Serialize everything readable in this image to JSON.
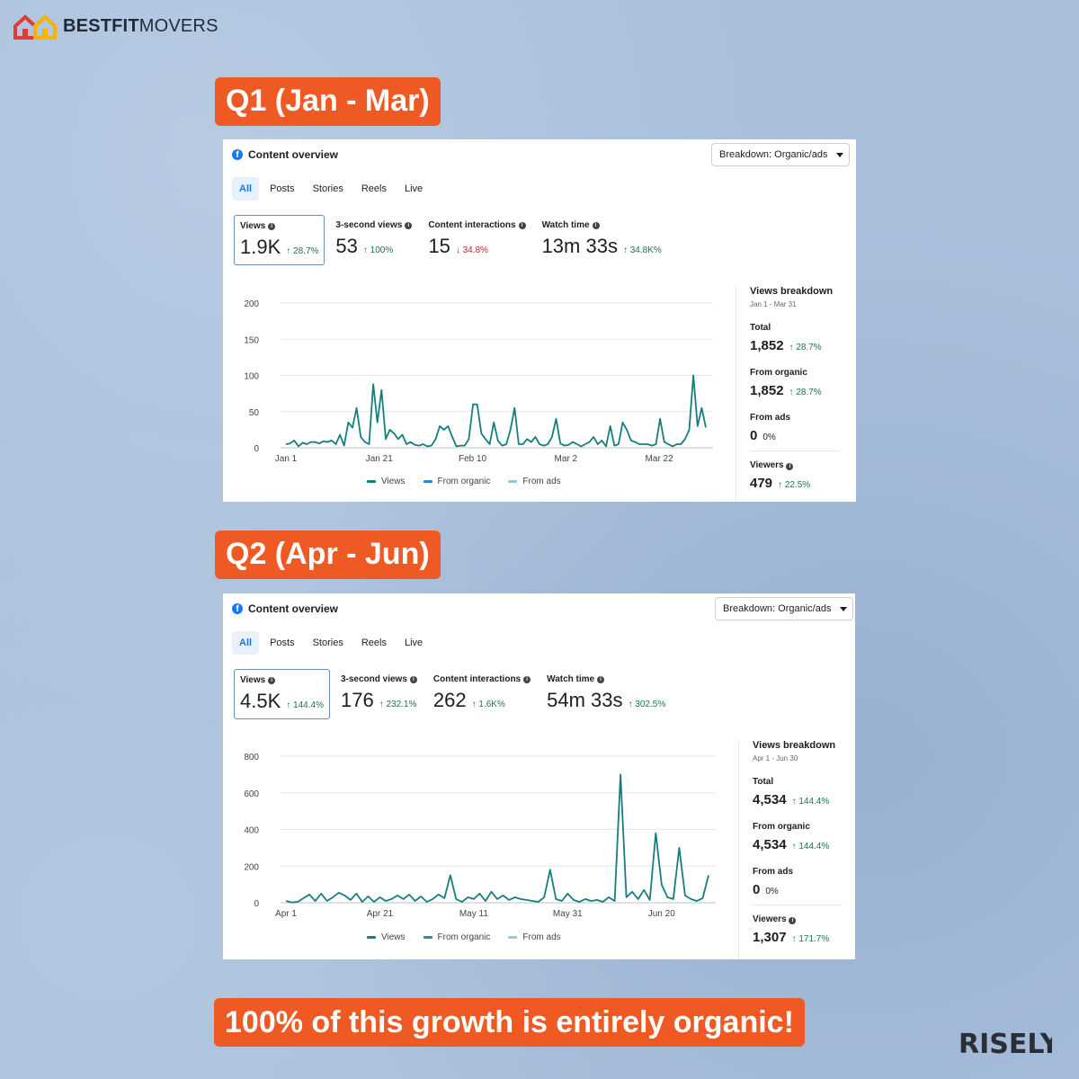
{
  "brand": {
    "name_bold": "BESTFIT",
    "name_light": "MOVERS",
    "colors": {
      "roof_red": "#e03b35",
      "roof_yellow": "#f4b400"
    }
  },
  "tagline": "100% of this growth is entirely organic!",
  "watermark": "RISELY",
  "accent": "#ef5a24",
  "panels": [
    {
      "quarter_label": "Q1 (Jan - Mar)",
      "title": "Content overview",
      "breakdown": "Breakdown: Organic/ads",
      "tabs": [
        "All",
        "Posts",
        "Stories",
        "Reels",
        "Live"
      ],
      "metrics": [
        {
          "label": "Views",
          "value": "1.9K",
          "delta": "28.7%",
          "dir": "up"
        },
        {
          "label": "3-second views",
          "value": "53",
          "delta": "100%",
          "dir": "up"
        },
        {
          "label": "Content interactions",
          "value": "15",
          "delta": "34.8%",
          "dir": "down"
        },
        {
          "label": "Watch time",
          "value": "13m 33s",
          "delta": "34.8K%",
          "dir": "up"
        }
      ],
      "side": {
        "title": "Views breakdown",
        "range": "Jan 1 - Mar 31",
        "total_label": "Total",
        "total": "1,852",
        "total_delta": "28.7%",
        "organic_label": "From organic",
        "organic": "1,852",
        "organic_delta": "28.7%",
        "ads_label": "From ads",
        "ads": "0",
        "ads_delta": "0%",
        "viewers_label": "Viewers",
        "viewers": "479",
        "viewers_delta": "22.5%"
      },
      "legend": [
        "Views",
        "From organic",
        "From ads"
      ]
    },
    {
      "quarter_label": "Q2 (Apr - Jun)",
      "title": "Content overview",
      "breakdown": "Breakdown: Organic/ads",
      "tabs": [
        "All",
        "Posts",
        "Stories",
        "Reels",
        "Live"
      ],
      "metrics": [
        {
          "label": "Views",
          "value": "4.5K",
          "delta": "144.4%",
          "dir": "up"
        },
        {
          "label": "3-second views",
          "value": "176",
          "delta": "232.1%",
          "dir": "up"
        },
        {
          "label": "Content interactions",
          "value": "262",
          "delta": "1.6K%",
          "dir": "up"
        },
        {
          "label": "Watch time",
          "value": "54m 33s",
          "delta": "302.5%",
          "dir": "up"
        }
      ],
      "side": {
        "title": "Views breakdown",
        "range": "Apr 1 - Jun 30",
        "total_label": "Total",
        "total": "4,534",
        "total_delta": "144.4%",
        "organic_label": "From organic",
        "organic": "4,534",
        "organic_delta": "144.4%",
        "ads_label": "From ads",
        "ads": "0",
        "ads_delta": "0%",
        "viewers_label": "Viewers",
        "viewers": "1,307",
        "viewers_delta": "171.7%"
      },
      "legend": [
        "Views",
        "From organic",
        "From ads"
      ]
    }
  ],
  "chart_data": [
    {
      "type": "line",
      "yticks": [
        0,
        50,
        100,
        150,
        200
      ],
      "ylim": [
        0,
        200
      ],
      "xtick_labels": [
        "Jan 1",
        "Jan 21",
        "Feb 10",
        "Mar 2",
        "Mar 22"
      ],
      "xtick_days": [
        0,
        20,
        40,
        60,
        80
      ],
      "x_days": 90,
      "series": [
        {
          "name": "Views",
          "color": "#177e7e",
          "values": [
            5,
            6,
            10,
            2,
            7,
            5,
            8,
            8,
            6,
            9,
            8,
            10,
            5,
            18,
            3,
            35,
            28,
            55,
            15,
            8,
            5,
            88,
            35,
            80,
            12,
            25,
            20,
            12,
            18,
            5,
            8,
            4,
            3,
            5,
            2,
            3,
            12,
            30,
            25,
            30,
            15,
            2,
            3,
            3,
            12,
            60,
            60,
            20,
            12,
            5,
            35,
            10,
            3,
            5,
            25,
            55,
            5,
            5,
            12,
            8,
            15,
            5,
            3,
            5,
            15,
            40,
            6,
            3,
            4,
            8,
            5,
            2,
            5,
            8,
            15,
            5,
            10,
            2,
            30,
            3,
            5,
            35,
            25,
            10,
            8,
            5,
            5,
            5,
            3,
            5,
            40,
            8,
            5,
            2,
            5,
            5,
            12,
            25,
            100,
            30,
            55,
            28
          ]
        },
        {
          "name": "From organic",
          "color": "#2d87c8",
          "values": []
        },
        {
          "name": "From ads",
          "color": "#8fc7e6",
          "values": []
        }
      ]
    },
    {
      "type": "line",
      "yticks": [
        0,
        200,
        400,
        600,
        800
      ],
      "ylim": [
        0,
        800
      ],
      "xtick_labels": [
        "Apr 1",
        "Apr 21",
        "May 11",
        "May 31",
        "Jun 20"
      ],
      "xtick_days": [
        0,
        20,
        40,
        60,
        80
      ],
      "x_days": 90,
      "series": [
        {
          "name": "Views",
          "color": "#177e7e",
          "values": [
            10,
            2,
            5,
            25,
            45,
            10,
            50,
            10,
            30,
            55,
            40,
            15,
            50,
            5,
            35,
            5,
            30,
            10,
            20,
            40,
            20,
            45,
            10,
            35,
            5,
            20,
            45,
            25,
            150,
            20,
            5,
            30,
            20,
            50,
            10,
            60,
            20,
            40,
            15,
            30,
            20,
            15,
            10,
            5,
            30,
            180,
            20,
            10,
            50,
            15,
            5,
            20,
            10,
            15,
            5,
            30,
            10,
            700,
            30,
            60,
            20,
            70,
            15,
            380,
            100,
            30,
            20,
            300,
            40,
            20,
            10,
            25,
            150
          ]
        },
        {
          "name": "From organic",
          "color": "#2d87c8",
          "values": []
        },
        {
          "name": "From ads",
          "color": "#8fc7e6",
          "values": []
        }
      ]
    }
  ]
}
